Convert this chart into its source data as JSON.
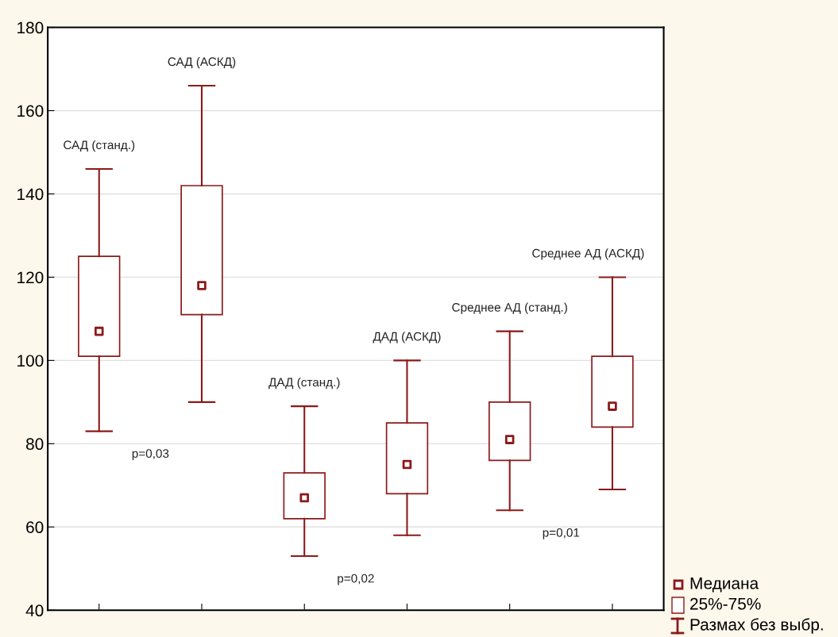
{
  "chart_data": {
    "type": "box",
    "categories": [
      null,
      null,
      null,
      null,
      null,
      null
    ],
    "boxes": [
      {
        "low": 83,
        "q1": 101,
        "median": 107,
        "q3": 125,
        "high": 146
      },
      {
        "low": 90,
        "q1": 111,
        "median": 118,
        "q3": 142,
        "high": 166
      },
      {
        "low": 53,
        "q1": 62,
        "median": 67,
        "q3": 73,
        "high": 89
      },
      {
        "low": 58,
        "q1": 68,
        "median": 75,
        "q3": 85,
        "high": 100
      },
      {
        "low": 64,
        "q1": 76,
        "median": 81,
        "q3": 90,
        "high": 107
      },
      {
        "low": 69,
        "q1": 84,
        "median": 89,
        "q3": 101,
        "high": 120
      }
    ],
    "color": "#8b1a1a",
    "ylim": [
      40,
      180
    ],
    "yticks": [
      40,
      60,
      80,
      100,
      120,
      140,
      160,
      180
    ],
    "grid": "y",
    "tick_labels": "y",
    "annotations": [
      "САД (станд.)",
      "САД (АСКД)",
      "ДАД (станд.)",
      "ДАД (АСКД)",
      "Среднее АД (станд.)",
      "Среднее АД (АСКД)",
      "p=0,03",
      "p=0,02",
      "p=0,01",
      "Медиана",
      "25%-75%",
      "Размах без выбр."
    ]
  }
}
